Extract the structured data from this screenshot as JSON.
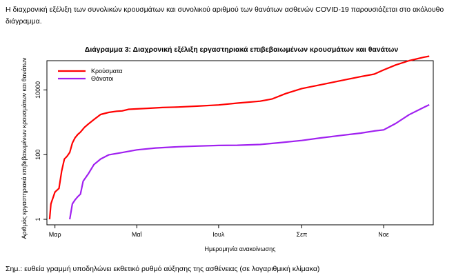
{
  "intro_text": "Η διαχρονική εξέλιξη των συνολικών κρουσμάτων και συνολικού αριθμού των θανάτων ασθενών COVID-19 παρουσιάζεται στο ακόλουθο διάγραμμα.",
  "note": "Σημ.: ευθεία γραμμή υποδηλώνει εκθετικό ρυθμό αύξησης της ασθένειας (σε λογαριθμική κλίμακα)",
  "colors": {
    "cases": "#ff0000",
    "deaths": "#a020f0"
  },
  "chart_data": {
    "type": "line",
    "title": "Διάγραμμα 3: Διαχρονική εξέλιξη εργαστηριακά επιβεβαιωμένων κρουσμάτων και θανάτων",
    "xlabel": "Ημερομηνία ανακοίνωσης",
    "ylabel": "Αριθμός εργαστηριακά επιβεβαιωμένων κρουσμάτων και θανάτων",
    "y_scale": "log10",
    "ylim": [
      1,
      80000
    ],
    "xlim": [
      "2020-02-24",
      "2020-12-08"
    ],
    "x_ticks": [
      {
        "date": "2020-03-01",
        "label": "Μαρ"
      },
      {
        "date": "2020-05-01",
        "label": "Μαΐ"
      },
      {
        "date": "2020-07-01",
        "label": "Ιουλ"
      },
      {
        "date": "2020-09-01",
        "label": "Σεπ"
      },
      {
        "date": "2020-11-01",
        "label": "Νοε"
      }
    ],
    "y_ticks": [
      {
        "value": 1,
        "label": "1"
      },
      {
        "value": 100,
        "label": "100"
      },
      {
        "value": 10000,
        "label": "10000"
      }
    ],
    "legend_position": "top-left",
    "series": [
      {
        "name": "Κρούσματα",
        "color": "#ff0000",
        "points": [
          [
            "2020-02-26",
            1
          ],
          [
            "2020-02-27",
            3
          ],
          [
            "2020-03-01",
            7
          ],
          [
            "2020-03-04",
            9
          ],
          [
            "2020-03-06",
            31
          ],
          [
            "2020-03-08",
            73
          ],
          [
            "2020-03-10",
            89
          ],
          [
            "2020-03-12",
            117
          ],
          [
            "2020-03-14",
            228
          ],
          [
            "2020-03-16",
            331
          ],
          [
            "2020-03-18",
            418
          ],
          [
            "2020-03-20",
            495
          ],
          [
            "2020-03-23",
            695
          ],
          [
            "2020-03-26",
            892
          ],
          [
            "2020-03-30",
            1212
          ],
          [
            "2020-04-04",
            1735
          ],
          [
            "2020-04-10",
            2011
          ],
          [
            "2020-04-16",
            2192
          ],
          [
            "2020-04-20",
            2245
          ],
          [
            "2020-04-25",
            2517
          ],
          [
            "2020-05-01",
            2591
          ],
          [
            "2020-05-10",
            2710
          ],
          [
            "2020-05-20",
            2850
          ],
          [
            "2020-06-01",
            2952
          ],
          [
            "2020-06-15",
            3148
          ],
          [
            "2020-07-01",
            3432
          ],
          [
            "2020-07-15",
            3910
          ],
          [
            "2020-08-01",
            4477
          ],
          [
            "2020-08-10",
            5270
          ],
          [
            "2020-08-20",
            7684
          ],
          [
            "2020-09-01",
            10998
          ],
          [
            "2020-09-15",
            14400
          ],
          [
            "2020-10-01",
            19613
          ],
          [
            "2020-10-15",
            25802
          ],
          [
            "2020-10-25",
            30782
          ],
          [
            "2020-11-01",
            41527
          ],
          [
            "2020-11-10",
            59000
          ],
          [
            "2020-11-20",
            80000
          ],
          [
            "2020-12-01",
            103000
          ],
          [
            "2020-12-05",
            110000
          ]
        ]
      },
      {
        "name": "Θάνατοι",
        "color": "#a020f0",
        "points": [
          [
            "2020-03-12",
            1
          ],
          [
            "2020-03-14",
            3
          ],
          [
            "2020-03-16",
            4
          ],
          [
            "2020-03-18",
            5
          ],
          [
            "2020-03-20",
            6
          ],
          [
            "2020-03-22",
            15
          ],
          [
            "2020-03-26",
            26
          ],
          [
            "2020-03-30",
            49
          ],
          [
            "2020-04-04",
            73
          ],
          [
            "2020-04-10",
            98
          ],
          [
            "2020-04-20",
            116
          ],
          [
            "2020-05-01",
            140
          ],
          [
            "2020-05-15",
            160
          ],
          [
            "2020-06-01",
            175
          ],
          [
            "2020-06-15",
            184
          ],
          [
            "2020-07-01",
            192
          ],
          [
            "2020-07-15",
            195
          ],
          [
            "2020-08-01",
            206
          ],
          [
            "2020-08-15",
            232
          ],
          [
            "2020-09-01",
            273
          ],
          [
            "2020-09-15",
            328
          ],
          [
            "2020-10-01",
            395
          ],
          [
            "2020-10-15",
            463
          ],
          [
            "2020-10-25",
            537
          ],
          [
            "2020-11-01",
            581
          ],
          [
            "2020-11-10",
            918
          ],
          [
            "2020-11-20",
            1713
          ],
          [
            "2020-12-01",
            2902
          ],
          [
            "2020-12-05",
            3472
          ]
        ]
      }
    ]
  }
}
